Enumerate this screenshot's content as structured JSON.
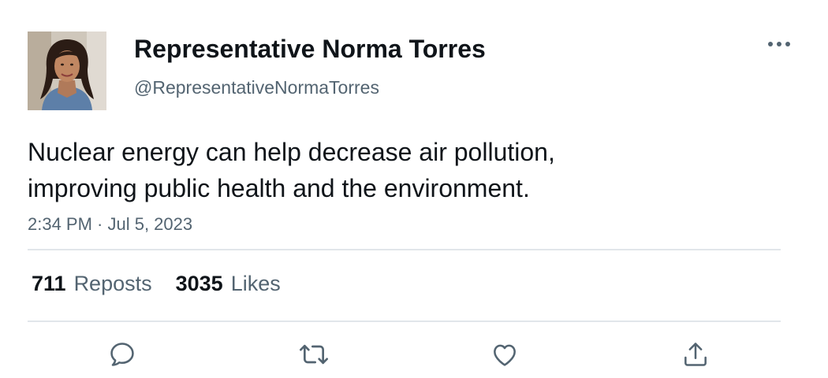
{
  "author": {
    "display_name": "Representative Norma Torres",
    "handle": "@RepresentativeNormaTorres"
  },
  "tweet": {
    "text_lines": [
      "Nuclear energy can help decrease air pollution,",
      "improving public health and the environment."
    ],
    "timestamp": "2:34 PM · Jul 5, 2023"
  },
  "stats": {
    "reposts_count": "711",
    "reposts_label": "Reposts",
    "likes_count": "3035",
    "likes_label": "Likes"
  },
  "icons": {
    "more": "more-horizontal-icon",
    "reply": "reply-icon",
    "repost": "repost-icon",
    "like": "like-icon",
    "share": "share-icon"
  },
  "colors": {
    "text_primary": "#0f1419",
    "text_secondary": "#536471",
    "divider": "#e1e6ea"
  }
}
